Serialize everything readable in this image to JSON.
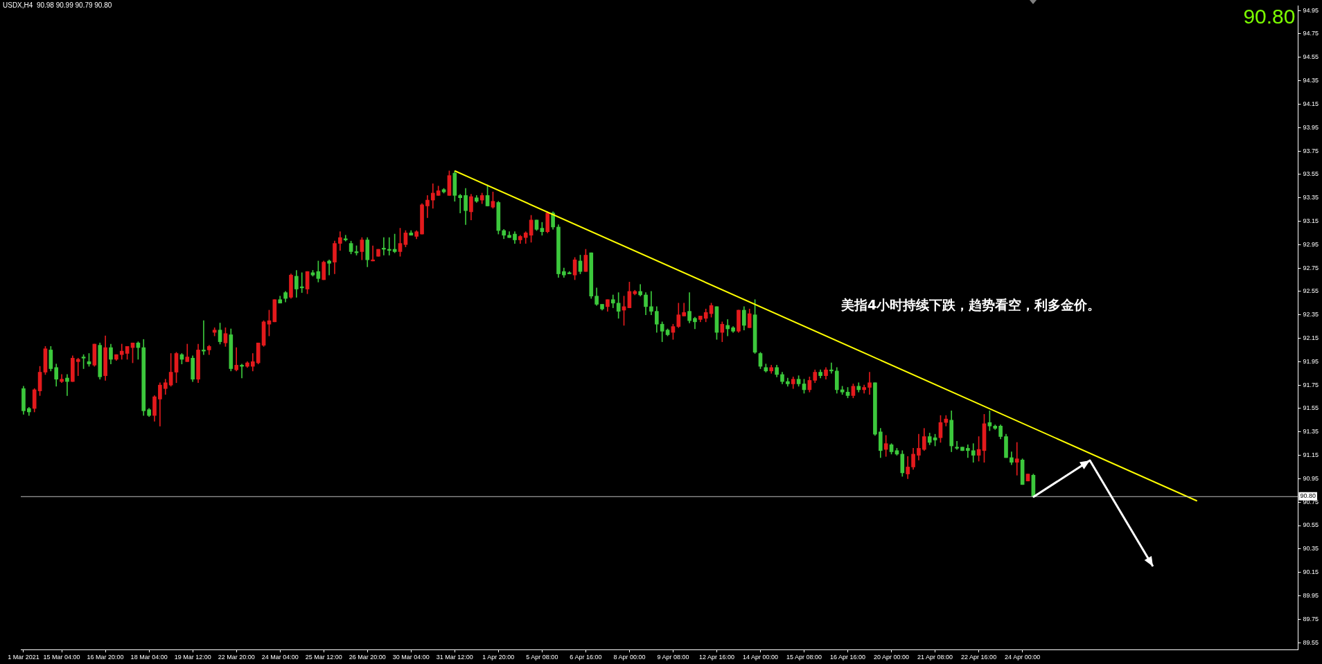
{
  "chart_data": {
    "type": "candlestick",
    "title": "USDX,H4  90.98 90.99 90.79 90.80",
    "annotations": [
      "90.80",
      "美指4小时持续下跌，趋势看空，利多金价。"
    ],
    "categories": [
      "1 Mar 2021",
      null,
      null,
      null,
      null,
      null,
      null,
      "15 Mar 04:00",
      null,
      null,
      null,
      null,
      null,
      null,
      null,
      "16 Mar 20:00",
      null,
      null,
      null,
      null,
      null,
      null,
      null,
      "18 Mar 04:00",
      null,
      null,
      null,
      null,
      null,
      null,
      null,
      "19 Mar 12:00",
      null,
      null,
      null,
      null,
      null,
      null,
      null,
      "22 Mar 20:00",
      null,
      null,
      null,
      null,
      null,
      null,
      null,
      "24 Mar 04:00",
      null,
      null,
      null,
      null,
      null,
      null,
      null,
      "25 Mar 12:00",
      null,
      null,
      null,
      null,
      null,
      null,
      null,
      "26 Mar 20:00",
      null,
      null,
      null,
      null,
      null,
      null,
      null,
      "30 Mar 04:00",
      null,
      null,
      null,
      null,
      null,
      null,
      null,
      "31 Mar 12:00",
      null,
      null,
      null,
      null,
      null,
      null,
      null,
      "1 Apr 20:00",
      null,
      null,
      null,
      null,
      null,
      null,
      null,
      "5 Apr 08:00",
      null,
      null,
      null,
      null,
      null,
      null,
      null,
      "6 Apr 16:00",
      null,
      null,
      null,
      null,
      null,
      null,
      null,
      "8 Apr 00:00",
      null,
      null,
      null,
      null,
      null,
      null,
      null,
      "9 Apr 08:00",
      null,
      null,
      null,
      null,
      null,
      null,
      null,
      "12 Apr 16:00",
      null,
      null,
      null,
      null,
      null,
      null,
      null,
      "14 Apr 00:00",
      null,
      null,
      null,
      null,
      null,
      null,
      null,
      "15 Apr 08:00",
      null,
      null,
      null,
      null,
      null,
      null,
      null,
      "16 Apr 16:00",
      null,
      null,
      null,
      null,
      null,
      null,
      null,
      "20 Apr 00:00",
      null,
      null,
      null,
      null,
      null,
      null,
      null,
      "21 Apr 08:00",
      null,
      null,
      null,
      null,
      null,
      null,
      null,
      "22 Apr 16:00",
      null,
      null,
      null,
      null,
      null,
      null,
      null,
      "24 Apr 00:00",
      null,
      null,
      null,
      null,
      null,
      null,
      null,
      null,
      null,
      null,
      null,
      null,
      null,
      null,
      null,
      null,
      null,
      null,
      null,
      null,
      null,
      null,
      null,
      null,
      null,
      null,
      null,
      null,
      null,
      null,
      null,
      null,
      null,
      null,
      null,
      null,
      null,
      null,
      null,
      null,
      null,
      null,
      null,
      null,
      null,
      null,
      null,
      null,
      null,
      null
    ],
    "ohlc": [
      [
        91.72,
        91.74,
        91.5,
        91.53
      ],
      [
        91.55,
        91.56,
        91.49,
        91.52
      ],
      [
        91.55,
        91.72,
        91.52,
        91.71
      ],
      [
        91.7,
        91.91,
        91.66,
        91.86
      ],
      [
        91.86,
        92.08,
        91.84,
        92.06
      ],
      [
        92.05,
        92.08,
        91.87,
        91.89
      ],
      [
        91.9,
        91.93,
        91.74,
        91.8
      ],
      [
        91.78,
        91.84,
        91.77,
        91.8
      ],
      [
        91.81,
        91.84,
        91.66,
        91.78
      ],
      [
        91.78,
        92.0,
        91.78,
        91.98
      ],
      [
        91.95,
        91.98,
        91.83,
        91.97
      ],
      [
        91.99,
        92.01,
        91.89,
        91.98
      ],
      [
        91.95,
        92.02,
        91.91,
        91.93
      ],
      [
        91.92,
        92.1,
        91.91,
        92.1
      ],
      [
        92.09,
        92.11,
        91.8,
        91.82
      ],
      [
        91.83,
        92.17,
        91.79,
        92.07
      ],
      [
        92.07,
        92.1,
        91.93,
        91.97
      ],
      [
        91.97,
        92.01,
        91.96,
        92.01
      ],
      [
        92.01,
        92.1,
        91.97,
        92.04
      ],
      [
        92.02,
        92.08,
        91.97,
        92.08
      ],
      [
        92.07,
        92.11,
        91.94,
        92.11
      ],
      [
        92.11,
        92.12,
        91.97,
        92.07
      ],
      [
        92.07,
        92.14,
        91.49,
        91.53
      ],
      [
        91.54,
        91.55,
        91.48,
        91.49
      ],
      [
        91.49,
        91.66,
        91.44,
        91.65
      ],
      [
        91.63,
        91.77,
        91.4,
        91.75
      ],
      [
        91.72,
        91.8,
        91.67,
        91.77
      ],
      [
        91.75,
        92.02,
        91.74,
        91.86
      ],
      [
        91.86,
        92.03,
        91.77,
        92.02
      ],
      [
        92.01,
        92.02,
        91.93,
        91.97
      ],
      [
        91.95,
        92.1,
        91.95,
        91.99
      ],
      [
        91.98,
        92.0,
        91.78,
        91.8
      ],
      [
        91.8,
        92.1,
        91.77,
        92.05
      ],
      [
        92.05,
        92.3,
        92.01,
        92.04
      ],
      [
        92.05,
        92.09,
        92.01,
        92.08
      ],
      [
        92.2,
        92.24,
        92.17,
        92.22
      ],
      [
        92.22,
        92.28,
        92.1,
        92.12
      ],
      [
        92.11,
        92.24,
        92.08,
        92.19
      ],
      [
        92.18,
        92.23,
        91.87,
        91.89
      ],
      [
        91.88,
        92.07,
        91.87,
        91.92
      ],
      [
        91.92,
        91.93,
        91.81,
        91.91
      ],
      [
        91.91,
        91.95,
        91.9,
        91.94
      ],
      [
        91.91,
        92.02,
        91.87,
        91.95
      ],
      [
        91.94,
        92.11,
        91.93,
        92.11
      ],
      [
        92.09,
        92.3,
        92.08,
        92.29
      ],
      [
        92.27,
        92.39,
        92.17,
        92.3
      ],
      [
        92.29,
        92.48,
        92.29,
        92.48
      ],
      [
        92.48,
        92.51,
        92.45,
        92.45
      ],
      [
        92.54,
        92.55,
        92.46,
        92.49
      ],
      [
        92.5,
        92.7,
        92.49,
        92.69
      ],
      [
        92.68,
        92.73,
        92.5,
        92.57
      ],
      [
        92.59,
        92.71,
        92.54,
        92.58
      ],
      [
        92.57,
        92.72,
        92.53,
        92.72
      ],
      [
        92.71,
        92.73,
        92.68,
        92.69
      ],
      [
        92.72,
        92.81,
        92.63,
        92.66
      ],
      [
        92.65,
        92.81,
        92.65,
        92.8
      ],
      [
        92.81,
        92.82,
        92.69,
        92.79
      ],
      [
        92.8,
        92.98,
        92.7,
        92.96
      ],
      [
        92.96,
        93.06,
        92.9,
        93.01
      ],
      [
        93.0,
        93.03,
        92.98,
        92.99
      ],
      [
        92.96,
        92.98,
        92.87,
        92.89
      ],
      [
        92.89,
        92.94,
        92.86,
        92.88
      ],
      [
        92.89,
        93.01,
        92.82,
        92.99
      ],
      [
        92.99,
        93.01,
        92.76,
        92.82
      ],
      [
        92.81,
        92.94,
        92.81,
        92.82
      ],
      [
        92.85,
        92.91,
        92.85,
        92.91
      ],
      [
        92.92,
        93.01,
        92.86,
        92.91
      ],
      [
        92.91,
        93.01,
        92.86,
        92.9
      ],
      [
        92.91,
        93.04,
        92.88,
        92.89
      ],
      [
        92.89,
        93.09,
        92.85,
        92.96
      ],
      [
        92.95,
        93.07,
        92.93,
        93.05
      ],
      [
        93.05,
        93.07,
        93.03,
        93.03
      ],
      [
        93.02,
        93.07,
        93.0,
        93.06
      ],
      [
        93.04,
        93.3,
        93.04,
        93.29
      ],
      [
        93.28,
        93.37,
        93.18,
        93.33
      ],
      [
        93.33,
        93.47,
        93.26,
        93.39
      ],
      [
        93.37,
        93.45,
        93.37,
        93.41
      ],
      [
        93.42,
        93.43,
        93.39,
        93.4
      ],
      [
        93.37,
        93.58,
        93.37,
        93.54
      ],
      [
        93.56,
        93.58,
        93.32,
        93.37
      ],
      [
        93.37,
        93.38,
        93.22,
        93.35
      ],
      [
        93.37,
        93.43,
        93.12,
        93.24
      ],
      [
        93.23,
        93.38,
        93.16,
        93.36
      ],
      [
        93.35,
        93.37,
        93.31,
        93.32
      ],
      [
        93.33,
        93.39,
        93.3,
        93.37
      ],
      [
        93.37,
        93.46,
        93.28,
        93.28
      ],
      [
        93.27,
        93.4,
        93.26,
        93.32
      ],
      [
        93.31,
        93.32,
        93.04,
        93.07
      ],
      [
        93.07,
        93.08,
        93.0,
        93.03
      ],
      [
        93.03,
        93.06,
        93.01,
        93.01
      ],
      [
        93.04,
        93.06,
        92.96,
        92.99
      ],
      [
        92.99,
        93.03,
        92.96,
        93.02
      ],
      [
        93.01,
        93.06,
        92.96,
        93.05
      ],
      [
        93.03,
        93.2,
        92.97,
        93.16
      ],
      [
        93.16,
        93.16,
        93.07,
        93.08
      ],
      [
        93.09,
        93.14,
        93.03,
        93.06
      ],
      [
        93.06,
        93.23,
        93.05,
        93.22
      ],
      [
        93.22,
        93.23,
        93.08,
        93.1
      ],
      [
        93.1,
        93.12,
        92.67,
        92.7
      ],
      [
        92.72,
        92.75,
        92.67,
        92.69
      ],
      [
        92.71,
        92.72,
        92.7,
        92.7
      ],
      [
        92.69,
        92.84,
        92.65,
        92.82
      ],
      [
        92.81,
        92.86,
        92.7,
        92.72
      ],
      [
        92.72,
        92.91,
        92.72,
        92.86
      ],
      [
        92.88,
        92.88,
        92.49,
        92.51
      ],
      [
        92.51,
        92.58,
        92.43,
        92.44
      ],
      [
        92.44,
        92.44,
        92.39,
        92.4
      ],
      [
        92.42,
        92.48,
        92.38,
        92.48
      ],
      [
        92.48,
        92.52,
        92.41,
        92.45
      ],
      [
        92.45,
        92.54,
        92.32,
        92.38
      ],
      [
        92.39,
        92.51,
        92.26,
        92.42
      ],
      [
        92.41,
        92.63,
        92.41,
        92.55
      ],
      [
        92.53,
        92.56,
        92.52,
        92.55
      ],
      [
        92.55,
        92.61,
        92.51,
        92.52
      ],
      [
        92.52,
        92.54,
        92.35,
        92.42
      ],
      [
        92.42,
        92.55,
        92.35,
        92.38
      ],
      [
        92.38,
        92.42,
        92.2,
        92.27
      ],
      [
        92.27,
        92.29,
        92.12,
        92.21
      ],
      [
        92.22,
        92.23,
        92.17,
        92.18
      ],
      [
        92.2,
        92.27,
        92.14,
        92.25
      ],
      [
        92.25,
        92.45,
        92.24,
        92.35
      ],
      [
        92.34,
        92.45,
        92.34,
        92.37
      ],
      [
        92.38,
        92.54,
        92.28,
        92.3
      ],
      [
        92.32,
        92.33,
        92.23,
        92.29
      ],
      [
        92.31,
        92.34,
        92.29,
        92.34
      ],
      [
        92.32,
        92.4,
        92.29,
        92.37
      ],
      [
        92.36,
        92.45,
        92.33,
        92.43
      ],
      [
        92.42,
        92.42,
        92.14,
        92.2
      ],
      [
        92.2,
        92.29,
        92.12,
        92.27
      ],
      [
        92.26,
        92.31,
        92.17,
        92.23
      ],
      [
        92.24,
        92.25,
        92.2,
        92.21
      ],
      [
        92.21,
        92.39,
        92.2,
        92.39
      ],
      [
        92.39,
        92.42,
        92.22,
        92.26
      ],
      [
        92.24,
        92.4,
        92.24,
        92.36
      ],
      [
        92.35,
        92.48,
        92.02,
        92.03
      ],
      [
        92.02,
        92.03,
        91.89,
        91.91
      ],
      [
        91.9,
        91.93,
        91.86,
        91.87
      ],
      [
        91.87,
        91.92,
        91.85,
        91.9
      ],
      [
        91.9,
        91.92,
        91.82,
        91.84
      ],
      [
        91.84,
        91.86,
        91.76,
        91.78
      ],
      [
        91.78,
        91.81,
        91.74,
        91.76
      ],
      [
        91.76,
        91.82,
        91.72,
        91.8
      ],
      [
        91.8,
        91.83,
        91.74,
        91.76
      ],
      [
        91.76,
        91.8,
        91.68,
        91.71
      ],
      [
        91.71,
        91.82,
        91.69,
        91.79
      ],
      [
        91.79,
        91.88,
        91.77,
        91.86
      ],
      [
        91.86,
        91.88,
        91.81,
        91.83
      ],
      [
        91.83,
        91.9,
        91.8,
        91.88
      ],
      [
        91.88,
        91.94,
        91.85,
        91.87
      ],
      [
        91.87,
        91.9,
        91.68,
        91.71
      ],
      [
        91.71,
        91.74,
        91.67,
        91.69
      ],
      [
        91.69,
        91.73,
        91.64,
        91.66
      ],
      [
        91.66,
        91.76,
        91.64,
        91.74
      ],
      [
        91.74,
        91.77,
        91.69,
        91.71
      ],
      [
        91.71,
        91.75,
        91.68,
        91.73
      ],
      [
        91.73,
        91.86,
        91.67,
        91.77
      ],
      [
        91.77,
        91.77,
        91.32,
        91.33
      ],
      [
        91.35,
        91.38,
        91.13,
        91.19
      ],
      [
        91.2,
        91.32,
        91.14,
        91.25
      ],
      [
        91.24,
        91.25,
        91.16,
        91.18
      ],
      [
        91.19,
        91.21,
        91.15,
        91.16
      ],
      [
        91.16,
        91.19,
        90.97,
        91.0
      ],
      [
        90.99,
        91.14,
        90.95,
        91.05
      ],
      [
        91.05,
        91.21,
        91.03,
        91.16
      ],
      [
        91.15,
        91.33,
        91.11,
        91.21
      ],
      [
        91.2,
        91.38,
        91.19,
        91.31
      ],
      [
        91.31,
        91.34,
        91.24,
        91.26
      ],
      [
        91.3,
        91.33,
        91.23,
        91.28
      ],
      [
        91.3,
        91.49,
        91.26,
        91.43
      ],
      [
        91.43,
        91.49,
        91.4,
        91.46
      ],
      [
        91.45,
        91.53,
        91.18,
        91.23
      ],
      [
        91.22,
        91.27,
        91.2,
        91.21
      ],
      [
        91.22,
        91.22,
        91.19,
        91.19
      ],
      [
        91.21,
        91.24,
        91.13,
        91.19
      ],
      [
        91.19,
        91.25,
        91.09,
        91.15
      ],
      [
        91.15,
        91.31,
        91.1,
        91.2
      ],
      [
        91.19,
        91.5,
        91.09,
        91.42
      ],
      [
        91.43,
        91.53,
        91.36,
        91.4
      ],
      [
        91.4,
        91.41,
        91.37,
        91.38
      ],
      [
        91.4,
        91.41,
        91.29,
        91.31
      ],
      [
        91.31,
        91.33,
        91.13,
        91.13
      ],
      [
        91.13,
        91.18,
        91.07,
        91.09
      ],
      [
        91.09,
        91.26,
        90.98,
        91.12
      ],
      [
        91.11,
        91.12,
        90.9,
        90.9
      ],
      [
        90.93,
        90.99,
        90.93,
        90.99
      ],
      [
        90.98,
        90.99,
        90.79,
        90.8
      ],
      null,
      null,
      null,
      null,
      null,
      null,
      null,
      null,
      null,
      null,
      null,
      null,
      null,
      null,
      null,
      null,
      null,
      null,
      null,
      null,
      null,
      null,
      null,
      null,
      null,
      null,
      null,
      null,
      null,
      null,
      null,
      null,
      null,
      null,
      null,
      null,
      null,
      null,
      null,
      null,
      null,
      null,
      null,
      null,
      null,
      null,
      null,
      null
    ],
    "colors": [
      "#3cc83c",
      "#3cc83c",
      "#e31a1c",
      "#e31a1c",
      "#e31a1c",
      "#3cc83c",
      "#3cc83c",
      "#e31a1c",
      "#3cc83c",
      "#e31a1c",
      "#e31a1c",
      "#3cc83c",
      "#3cc83c",
      "#e31a1c",
      "#3cc83c",
      "#e31a1c",
      "#3cc83c",
      "#e31a1c",
      "#e31a1c",
      "#e31a1c",
      "#e31a1c",
      "#3cc83c",
      "#3cc83c",
      "#3cc83c",
      "#e31a1c",
      "#e31a1c",
      "#e31a1c",
      "#e31a1c",
      "#e31a1c",
      "#3cc83c",
      "#e31a1c",
      "#3cc83c",
      "#e31a1c",
      "#3cc83c",
      "#e31a1c",
      "#e31a1c",
      "#3cc83c",
      "#e31a1c",
      "#3cc83c",
      "#e31a1c",
      "#3cc83c",
      "#e31a1c",
      "#e31a1c",
      "#e31a1c",
      "#e31a1c",
      "#e31a1c",
      "#e31a1c",
      "#3cc83c",
      "#3cc83c",
      "#e31a1c",
      "#3cc83c",
      "#3cc83c",
      "#e31a1c",
      "#3cc83c",
      "#3cc83c",
      "#e31a1c",
      "#3cc83c",
      "#e31a1c",
      "#e31a1c",
      "#3cc83c",
      "#3cc83c",
      "#3cc83c",
      "#e31a1c",
      "#3cc83c",
      "#e31a1c",
      "#e31a1c",
      "#3cc83c",
      "#3cc83c",
      "#3cc83c",
      "#e31a1c",
      "#e31a1c",
      "#3cc83c",
      "#e31a1c",
      "#e31a1c",
      "#e31a1c",
      "#e31a1c",
      "#e31a1c",
      "#3cc83c",
      "#e31a1c",
      "#3cc83c",
      "#3cc83c",
      "#3cc83c",
      "#e31a1c",
      "#3cc83c",
      "#e31a1c",
      "#3cc83c",
      "#e31a1c",
      "#3cc83c",
      "#3cc83c",
      "#3cc83c",
      "#3cc83c",
      "#e31a1c",
      "#e31a1c",
      "#e31a1c",
      "#3cc83c",
      "#3cc83c",
      "#e31a1c",
      "#3cc83c",
      "#3cc83c",
      "#3cc83c",
      "#3cc83c",
      "#e31a1c",
      "#3cc83c",
      "#e31a1c",
      "#3cc83c",
      "#3cc83c",
      "#3cc83c",
      "#e31a1c",
      "#3cc83c",
      "#3cc83c",
      "#e31a1c",
      "#e31a1c",
      "#e31a1c",
      "#3cc83c",
      "#3cc83c",
      "#3cc83c",
      "#3cc83c",
      "#3cc83c",
      "#3cc83c",
      "#e31a1c",
      "#e31a1c",
      "#e31a1c",
      "#3cc83c",
      "#3cc83c",
      "#e31a1c",
      "#e31a1c",
      "#e31a1c",
      "#3cc83c",
      "#e31a1c",
      "#3cc83c",
      "#3cc83c",
      "#e31a1c",
      "#3cc83c",
      "#e31a1c",
      "#3cc83c",
      "#3cc83c",
      "#3cc83c",
      "#e31a1c",
      "#3cc83c",
      "#3cc83c",
      "#3cc83c",
      "#e31a1c",
      "#3cc83c",
      "#3cc83c",
      "#e31a1c",
      "#e31a1c",
      "#3cc83c",
      "#e31a1c",
      "#3cc83c",
      "#3cc83c",
      "#3cc83c",
      "#3cc83c",
      "#e31a1c",
      "#3cc83c",
      "#e31a1c",
      "#e31a1c",
      "#3cc83c",
      "#3cc83c",
      "#e31a1c",
      "#3cc83c",
      "#3cc83c",
      "#3cc83c",
      "#e31a1c",
      "#e31a1c",
      "#e31a1c",
      "#e31a1c",
      "#3cc83c",
      "#3cc83c",
      "#e31a1c",
      "#e31a1c",
      "#3cc83c",
      "#3cc83c",
      "#3cc83c",
      "#3cc83c",
      "#3cc83c",
      "#e31a1c",
      "#e31a1c",
      "#3cc83c",
      "#3cc83c",
      "#3cc83c",
      "#3cc83c",
      "#3cc83c",
      "#e31a1c",
      "#3cc83c",
      "#e31a1c",
      "#3cc83c",
      null,
      null,
      null,
      null,
      null,
      null,
      null,
      null,
      null,
      null,
      null,
      null,
      null,
      null,
      null,
      null,
      null,
      null,
      null,
      null,
      null,
      null,
      null,
      null,
      null,
      null,
      null,
      null,
      null,
      null,
      null,
      null,
      null,
      null,
      null,
      null,
      null,
      null,
      null,
      null,
      null,
      null,
      null,
      null,
      null,
      null,
      null,
      null
    ],
    "series": [
      {
        "type": "line",
        "color": "#ffff00",
        "values": [
          null,
          null,
          null,
          null,
          null,
          null,
          null,
          null,
          null,
          null,
          null,
          null,
          null,
          null,
          null,
          null,
          null,
          null,
          null,
          null,
          null,
          null,
          null,
          null,
          null,
          null,
          null,
          null,
          null,
          null,
          null,
          null,
          null,
          null,
          null,
          null,
          null,
          null,
          null,
          null,
          null,
          null,
          null,
          null,
          null,
          null,
          null,
          null,
          null,
          null,
          null,
          null,
          null,
          null,
          null,
          null,
          null,
          null,
          null,
          null,
          null,
          null,
          null,
          null,
          null,
          null,
          null,
          null,
          null,
          null,
          null,
          null,
          null,
          null,
          null,
          null,
          null,
          null,
          null,
          93.58,
          null,
          null,
          null,
          null,
          null,
          null,
          null,
          null,
          null,
          null,
          null,
          null,
          null,
          null,
          null,
          null,
          null,
          null,
          null,
          null,
          null,
          null,
          null,
          null,
          null,
          null,
          null,
          null,
          null,
          null,
          null,
          null,
          null,
          null,
          null,
          null,
          null,
          null,
          null,
          null,
          null,
          null,
          null,
          null,
          null,
          null,
          null,
          null,
          null,
          null,
          null,
          null,
          null,
          null,
          null,
          null,
          null,
          null,
          null,
          null,
          null,
          null,
          null,
          null,
          null,
          null,
          null,
          null,
          null,
          null,
          null,
          null,
          null,
          null,
          null,
          null,
          null,
          null,
          null,
          null,
          null,
          null,
          null,
          null,
          null,
          null,
          null,
          null,
          null,
          null,
          null,
          null,
          null,
          null,
          null,
          null,
          null,
          null,
          null,
          null,
          null,
          null,
          null,
          null,
          null,
          null,
          null,
          null,
          null,
          null,
          null,
          null,
          null,
          null,
          null,
          null,
          null,
          null,
          null,
          null,
          null,
          null,
          null,
          null,
          null,
          null,
          null,
          null,
          null,
          null,
          null,
          null,
          null,
          null,
          null,
          90.76,
          null,
          null,
          null,
          null,
          null,
          null,
          null,
          null,
          null,
          null,
          null,
          null,
          null,
          null,
          null,
          null,
          null,
          null
        ]
      }
    ],
    "ylim": [
      89.49,
      94.99
    ],
    "yticks": [
      94.95,
      94.75,
      94.55,
      94.35,
      94.15,
      93.95,
      93.75,
      93.55,
      93.35,
      93.15,
      92.95,
      92.75,
      92.55,
      92.35,
      92.15,
      91.95,
      91.75,
      91.55,
      91.35,
      91.15,
      90.95,
      90.75,
      90.55,
      90.35,
      90.15,
      89.95,
      89.75,
      89.55
    ],
    "ref_lines": [
      {
        "axis": "y",
        "value": 90.8,
        "label": "90.80",
        "color": "#c0c0c0"
      }
    ],
    "legend": false
  }
}
